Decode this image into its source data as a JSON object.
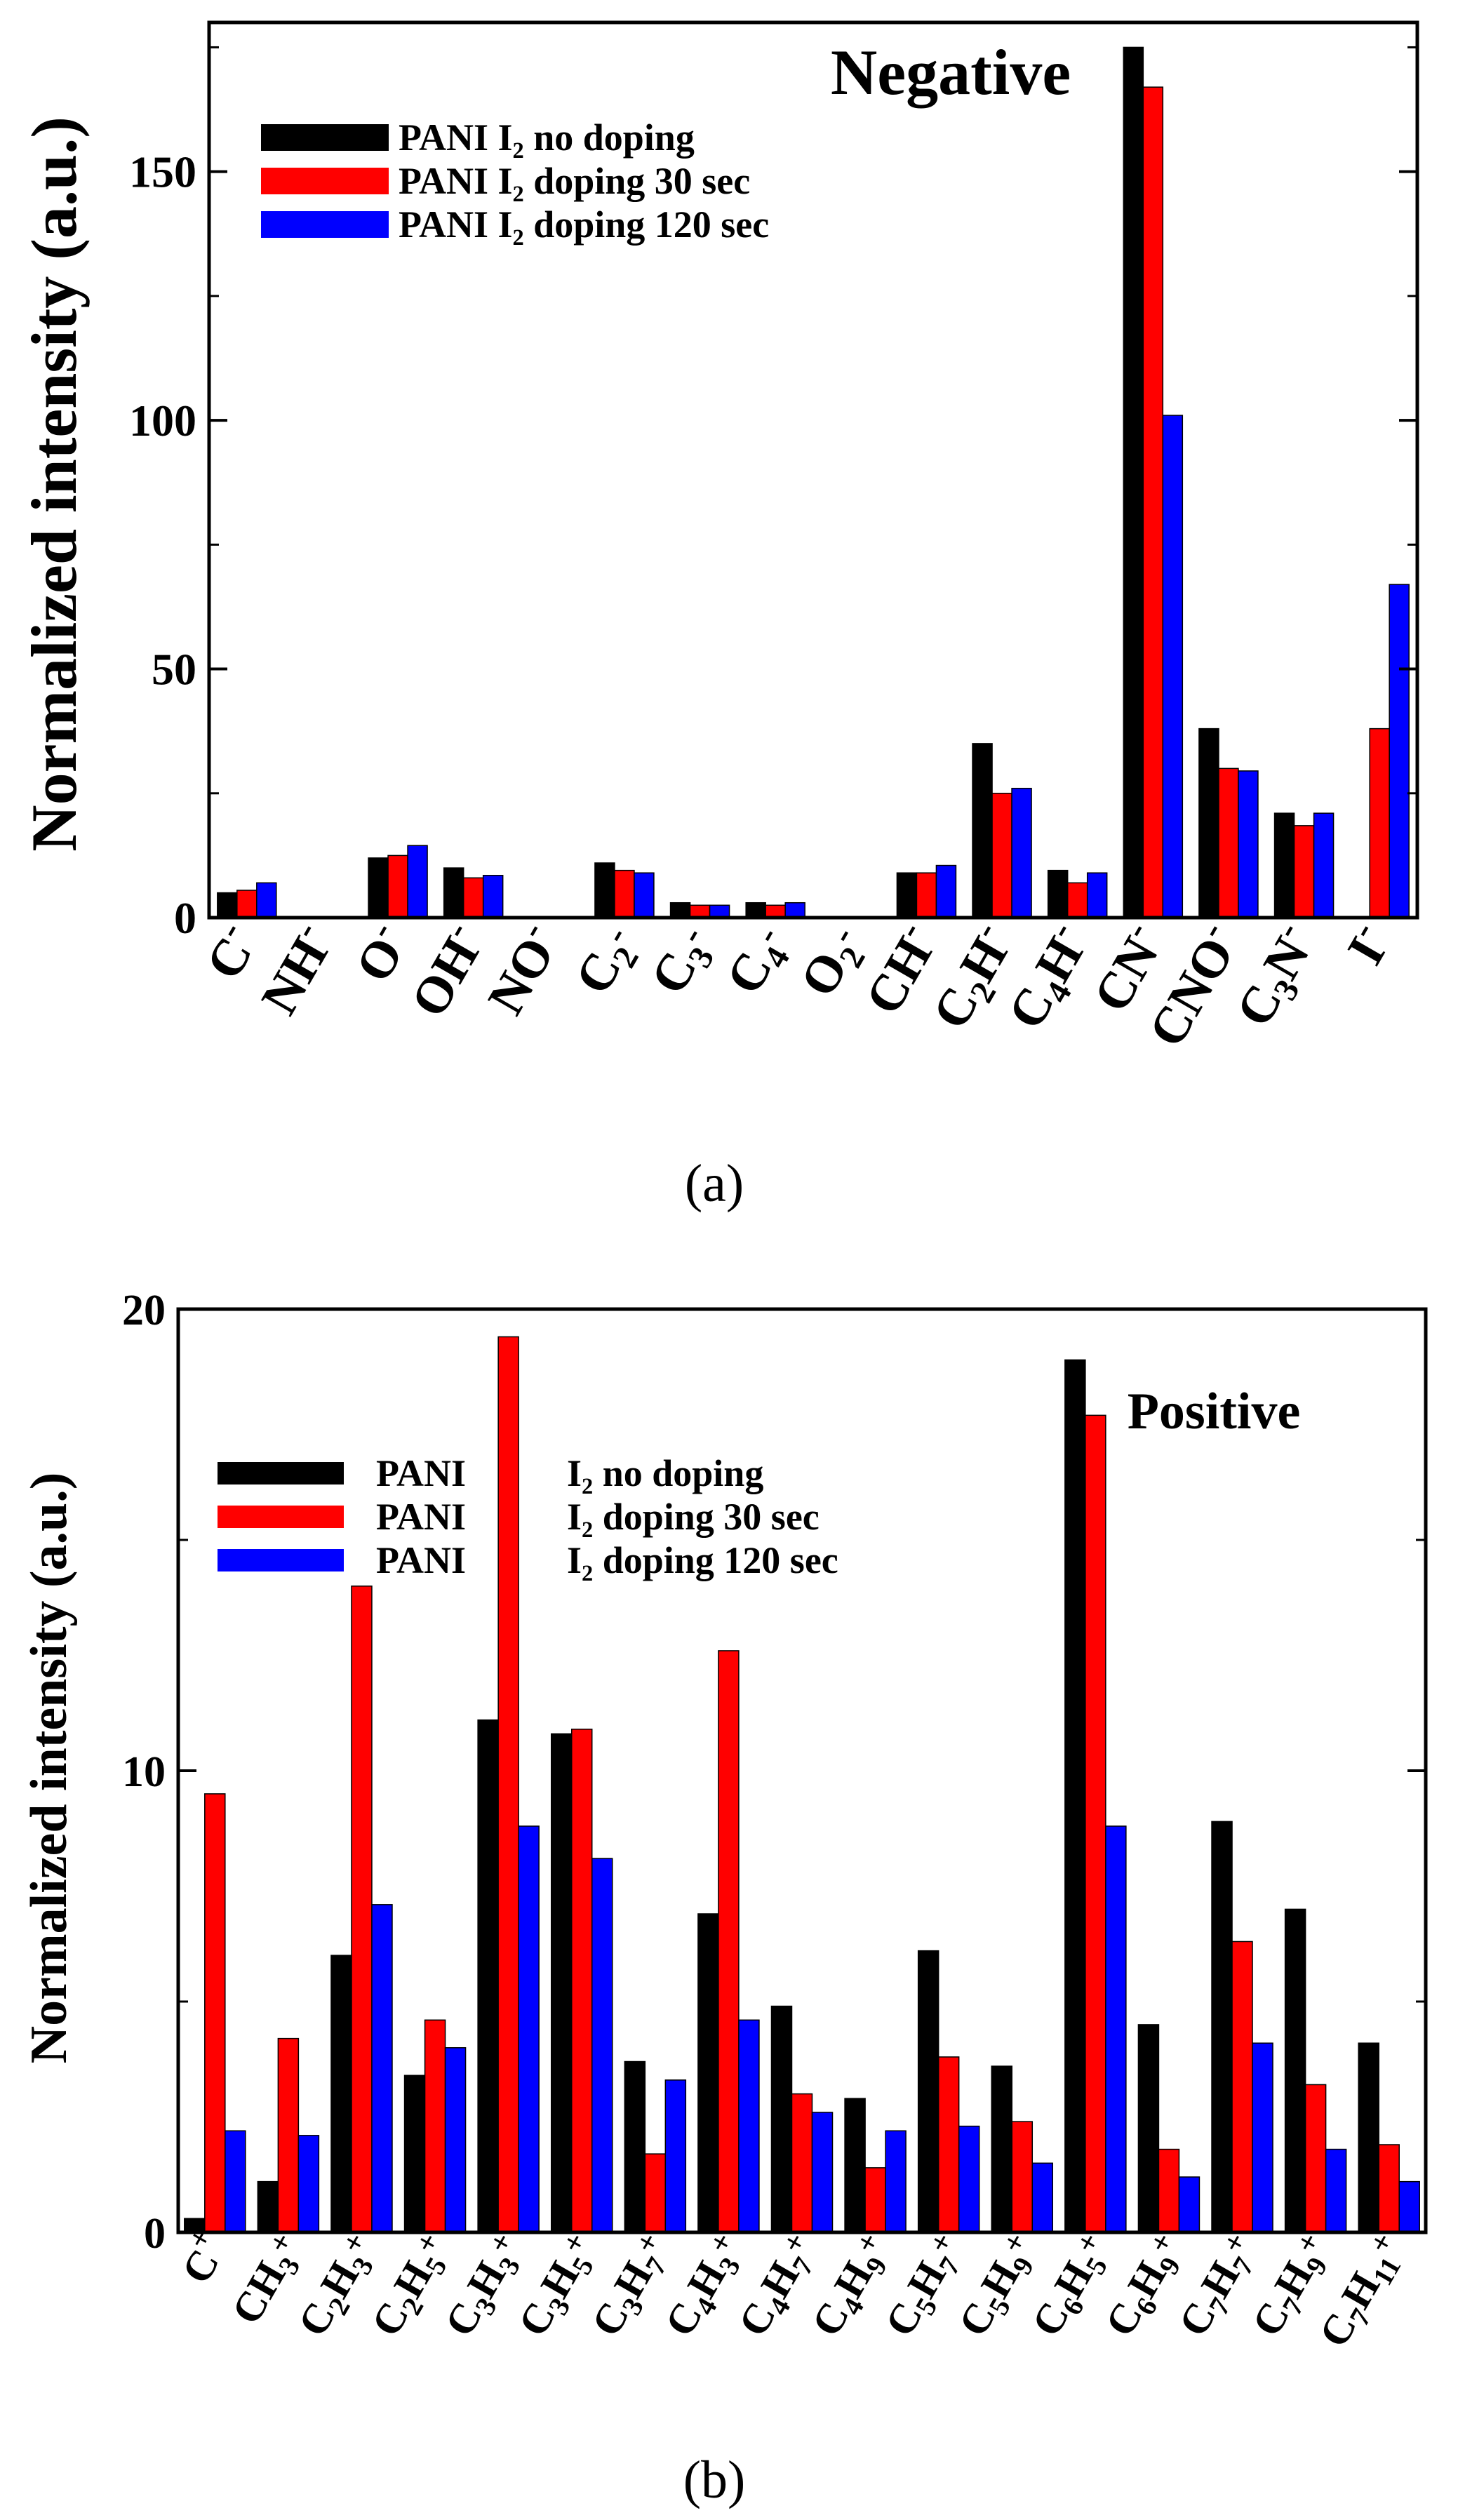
{
  "chart_data": [
    {
      "type": "bar",
      "title": "Negative",
      "ylabel": "Normalized intensity (a.u.)",
      "xlabel": "",
      "ylim": [
        0,
        180
      ],
      "yticks": [
        0,
        50,
        100,
        150
      ],
      "caption": "(a)",
      "categories": [
        {
          "b": "C",
          "s": "",
          "p": "-"
        },
        {
          "b": "NH",
          "s": "",
          "p": "-"
        },
        {
          "b": "O",
          "s": "",
          "p": "-"
        },
        {
          "b": "OH",
          "s": "",
          "p": "-"
        },
        {
          "b": "NO",
          "s": "",
          "p": "-"
        },
        {
          "b": "C",
          "s": "2",
          "p": "-"
        },
        {
          "b": "C",
          "s": "3",
          "p": "-"
        },
        {
          "b": "C",
          "s": "4",
          "p": "-"
        },
        {
          "b": "O",
          "s": "2",
          "p": "-"
        },
        {
          "b": "CH",
          "s": "",
          "p": "-"
        },
        {
          "b": "C",
          "s": "2",
          "b2": "H",
          "p": "-"
        },
        {
          "b": "C",
          "s": "4",
          "b2": "H",
          "p": "-"
        },
        {
          "b": "CN",
          "s": "",
          "p": "-"
        },
        {
          "b": "CNO",
          "s": "",
          "p": "-"
        },
        {
          "b": "C",
          "s": "3",
          "b2": "N",
          "p": "-"
        },
        {
          "b": "I",
          "s": "",
          "p": "-"
        }
      ],
      "series": [
        {
          "name": "PANI I₂ no doping",
          "color": "#000000",
          "values": [
            5,
            0.2,
            12,
            10,
            0.1,
            11,
            3,
            3,
            0.1,
            9,
            35,
            9.5,
            175,
            38,
            21,
            0.2
          ]
        },
        {
          "name": "PANI I₂ doping 30 sec",
          "color": "#ff0000",
          "values": [
            5.5,
            0.2,
            12.5,
            8,
            0.1,
            9.5,
            2.5,
            2.5,
            0.1,
            9,
            25,
            7,
            167,
            30,
            18.5,
            38
          ]
        },
        {
          "name": "PANI I₂ doping 120 sec",
          "color": "#0000ff",
          "values": [
            7,
            0.2,
            14.5,
            8.5,
            0.1,
            9,
            2.5,
            3,
            0.1,
            10.5,
            26,
            9,
            101,
            29.5,
            21,
            67
          ]
        }
      ]
    },
    {
      "type": "bar",
      "title": "Positive",
      "ylabel": "Normalized intensity (a.u.)",
      "xlabel": "",
      "ylim": [
        0,
        20
      ],
      "yticks": [
        0,
        10,
        20
      ],
      "caption": "(b)",
      "categories": [
        {
          "parts": [
            [
              "C",
              ""
            ]
          ],
          "p": "+"
        },
        {
          "parts": [
            [
              "CH",
              "3"
            ]
          ],
          "p": "+"
        },
        {
          "parts": [
            [
              "C",
              "2"
            ],
            [
              "H",
              "3"
            ]
          ],
          "p": "+"
        },
        {
          "parts": [
            [
              "C",
              "2"
            ],
            [
              "H",
              "5"
            ]
          ],
          "p": "+"
        },
        {
          "parts": [
            [
              "C",
              "3"
            ],
            [
              "H",
              "3"
            ]
          ],
          "p": "+"
        },
        {
          "parts": [
            [
              "C",
              "3"
            ],
            [
              "H",
              "5"
            ]
          ],
          "p": "+"
        },
        {
          "parts": [
            [
              "C",
              "3"
            ],
            [
              "H",
              "7"
            ]
          ],
          "p": "+"
        },
        {
          "parts": [
            [
              "C",
              "4"
            ],
            [
              "H",
              "3"
            ]
          ],
          "p": "+"
        },
        {
          "parts": [
            [
              "C",
              "4"
            ],
            [
              "H",
              "7"
            ]
          ],
          "p": "+"
        },
        {
          "parts": [
            [
              "C",
              "4"
            ],
            [
              "H",
              "9"
            ]
          ],
          "p": "+"
        },
        {
          "parts": [
            [
              "C",
              "5"
            ],
            [
              "H",
              "7"
            ]
          ],
          "p": "+"
        },
        {
          "parts": [
            [
              "C",
              "5"
            ],
            [
              "H",
              "9"
            ]
          ],
          "p": "+"
        },
        {
          "parts": [
            [
              "C",
              "6"
            ],
            [
              "H",
              "5"
            ]
          ],
          "p": "+"
        },
        {
          "parts": [
            [
              "C",
              "6"
            ],
            [
              "H",
              "9"
            ]
          ],
          "p": "+"
        },
        {
          "parts": [
            [
              "C",
              "7"
            ],
            [
              "H",
              "7"
            ]
          ],
          "p": "+"
        },
        {
          "parts": [
            [
              "C",
              "7"
            ],
            [
              "H",
              "9"
            ]
          ],
          "p": "+"
        },
        {
          "parts": [
            [
              "C",
              "7"
            ],
            [
              "H",
              "11"
            ]
          ],
          "p": "+"
        }
      ],
      "legend_labels": [
        {
          "a": "PANI",
          "b": "I₂ no doping"
        },
        {
          "a": "PANI",
          "b": "I₂ doping 30 sec"
        },
        {
          "a": "PANI",
          "b": "I₂ doping 120 sec"
        }
      ],
      "series": [
        {
          "name": "PANI I₂ no doping",
          "color": "#000000",
          "values": [
            0.3,
            1.1,
            6.0,
            3.4,
            11.1,
            10.8,
            3.7,
            6.9,
            4.9,
            2.9,
            6.1,
            3.6,
            18.9,
            4.5,
            8.9,
            7.0,
            4.1
          ]
        },
        {
          "name": "PANI I₂ doping 30 sec",
          "color": "#ff0000",
          "values": [
            9.5,
            4.2,
            14.0,
            4.6,
            19.4,
            10.9,
            1.7,
            12.6,
            3.0,
            1.4,
            3.8,
            2.4,
            17.7,
            1.8,
            6.3,
            3.2,
            1.9
          ]
        },
        {
          "name": "PANI I₂ doping 120 sec",
          "color": "#0000ff",
          "values": [
            2.2,
            2.1,
            7.1,
            4.0,
            8.8,
            8.1,
            3.3,
            4.6,
            2.6,
            2.2,
            2.3,
            1.5,
            8.8,
            1.2,
            4.1,
            1.8,
            1.1
          ]
        }
      ]
    }
  ]
}
